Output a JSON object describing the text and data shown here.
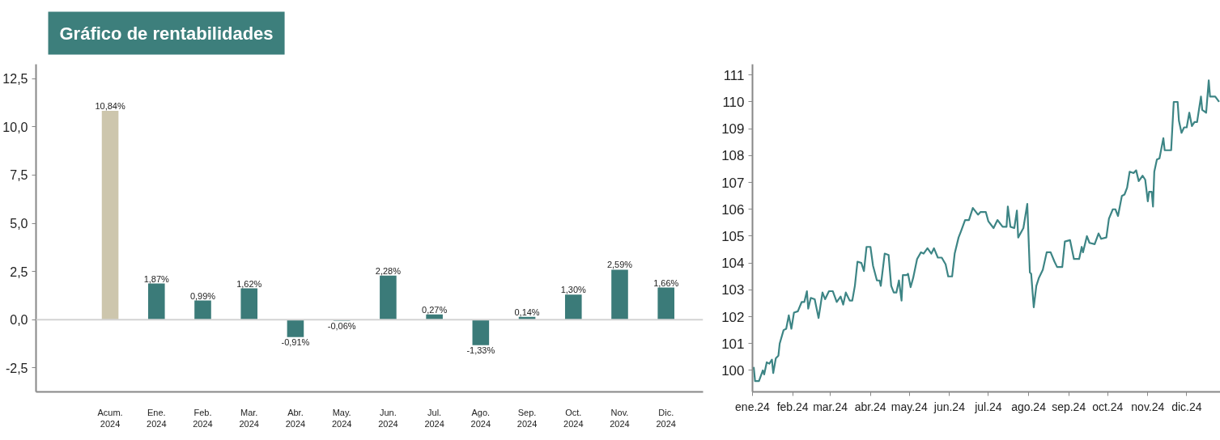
{
  "chart_data": [
    {
      "type": "bar",
      "title": "Gráfico de rentabilidades",
      "categories": [
        "Acum.\n2024",
        "Ene.\n2024",
        "Feb.\n2024",
        "Mar.\n2024",
        "Abr.\n2024",
        "May.\n2024",
        "Jun.\n2024",
        "Jul.\n2024",
        "Ago.\n2024",
        "Sep.\n2024",
        "Oct.\n2024",
        "Nov.\n2024",
        "Dic.\n2024"
      ],
      "values": [
        10.84,
        1.87,
        0.99,
        1.62,
        -0.91,
        -0.06,
        2.28,
        0.27,
        -1.33,
        0.14,
        1.3,
        2.59,
        1.66
      ],
      "colors": [
        "#cdc6ad",
        "#3b7b79",
        "#3b7b79",
        "#3b7b79",
        "#3b7b79",
        "#3b7b79",
        "#3b7b79",
        "#3b7b79",
        "#3b7b79",
        "#3b7b79",
        "#3b7b79",
        "#3b7b79",
        "#3b7b79"
      ],
      "value_labels": [
        "10,84%",
        "1,87%",
        "0,99%",
        "1,62%",
        "-0,91%",
        "-0,06%",
        "2,28%",
        "0,27%",
        "-1,33%",
        "0,14%",
        "1,30%",
        "2,59%",
        "1,66%"
      ],
      "ylim": [
        -3.75,
        13.25
      ],
      "yticks": [
        {
          "value": -2.5,
          "label": "-2,5"
        },
        {
          "value": 0,
          "label": "0,0"
        },
        {
          "value": 2.5,
          "label": "2,5"
        },
        {
          "value": 5,
          "label": "5,0"
        },
        {
          "value": 7.5,
          "label": "7,5"
        },
        {
          "value": 10,
          "label": "10,0"
        },
        {
          "value": 12.5,
          "label": "12,5"
        }
      ],
      "ref_lines": [
        {
          "axis": "y",
          "value": 0,
          "color": "#d3d3d3"
        }
      ]
    },
    {
      "type": "line",
      "color": "#3d8585",
      "x": [
        "2024-01-01",
        "2024-01-02",
        "2024-01-03",
        "2024-01-06",
        "2024-01-09",
        "2024-01-10",
        "2024-01-12",
        "2024-01-14",
        "2024-01-16",
        "2024-01-17",
        "2024-01-19",
        "2024-01-21",
        "2024-01-22",
        "2024-01-25",
        "2024-01-27",
        "2024-01-29",
        "2024-01-31",
        "2024-02-02",
        "2024-02-05",
        "2024-02-08",
        "2024-02-10",
        "2024-02-12",
        "2024-02-13",
        "2024-02-15",
        "2024-02-18",
        "2024-02-21",
        "2024-02-24",
        "2024-02-26",
        "2024-02-29",
        "2024-03-03",
        "2024-03-06",
        "2024-03-09",
        "2024-03-11",
        "2024-03-13",
        "2024-03-16",
        "2024-03-18",
        "2024-03-20",
        "2024-03-22",
        "2024-03-25",
        "2024-03-27",
        "2024-03-29",
        "2024-04-01",
        "2024-04-03",
        "2024-04-06",
        "2024-04-08",
        "2024-04-09",
        "2024-04-12",
        "2024-04-15",
        "2024-04-17",
        "2024-04-19",
        "2024-04-21",
        "2024-04-23",
        "2024-04-25",
        "2024-04-26",
        "2024-04-29",
        "2024-04-30",
        "2024-05-02",
        "2024-05-04",
        "2024-05-07",
        "2024-05-10",
        "2024-05-12",
        "2024-05-15",
        "2024-05-18",
        "2024-05-20",
        "2024-05-23",
        "2024-05-26",
        "2024-05-29",
        "2024-05-31",
        "2024-06-03",
        "2024-06-05",
        "2024-06-08",
        "2024-06-10",
        "2024-06-13",
        "2024-06-16",
        "2024-06-19",
        "2024-06-23",
        "2024-06-25",
        "2024-06-29",
        "2024-07-01",
        "2024-07-05",
        "2024-07-08",
        "2024-07-12",
        "2024-07-15",
        "2024-07-16",
        "2024-07-18",
        "2024-07-21",
        "2024-07-23",
        "2024-07-24",
        "2024-07-28",
        "2024-07-31",
        "2024-08-02",
        "2024-08-03",
        "2024-08-05",
        "2024-08-07",
        "2024-08-09",
        "2024-08-12",
        "2024-08-15",
        "2024-08-18",
        "2024-08-21",
        "2024-08-23",
        "2024-08-27",
        "2024-08-29",
        "2024-09-02",
        "2024-09-05",
        "2024-09-09",
        "2024-09-11",
        "2024-09-12",
        "2024-09-15",
        "2024-09-17",
        "2024-09-21",
        "2024-09-24",
        "2024-09-26",
        "2024-09-30",
        "2024-10-02",
        "2024-10-05",
        "2024-10-07",
        "2024-10-09",
        "2024-10-12",
        "2024-10-14",
        "2024-10-16",
        "2024-10-18",
        "2024-10-21",
        "2024-10-23",
        "2024-10-25",
        "2024-10-28",
        "2024-10-30",
        "2024-11-01",
        "2024-11-02",
        "2024-11-04",
        "2024-11-05",
        "2024-11-06",
        "2024-11-08",
        "2024-11-10",
        "2024-11-11",
        "2024-11-13",
        "2024-11-14",
        "2024-11-19",
        "2024-11-21",
        "2024-11-24",
        "2024-11-25",
        "2024-11-27",
        "2024-11-29",
        "2024-12-01",
        "2024-12-03",
        "2024-12-05",
        "2024-12-07",
        "2024-12-09",
        "2024-12-12",
        "2024-12-13",
        "2024-12-16",
        "2024-12-18",
        "2024-12-19",
        "2024-12-23",
        "2024-12-26"
      ],
      "values": [
        100.05,
        100.1,
        99.6,
        99.6,
        100.0,
        99.85,
        100.3,
        100.25,
        100.4,
        99.9,
        100.45,
        100.55,
        101.0,
        101.5,
        101.55,
        102.05,
        101.55,
        102.15,
        102.2,
        102.55,
        102.55,
        102.95,
        102.3,
        102.7,
        102.65,
        101.95,
        102.9,
        102.65,
        102.95,
        102.95,
        102.55,
        102.75,
        102.45,
        102.9,
        102.6,
        102.6,
        103.15,
        104.05,
        104.0,
        103.7,
        104.6,
        104.6,
        103.9,
        103.35,
        103.35,
        103.15,
        104.35,
        104.3,
        103.15,
        102.9,
        102.9,
        103.35,
        102.6,
        103.55,
        103.55,
        103.6,
        103.1,
        103.45,
        104.15,
        104.4,
        104.35,
        104.55,
        104.35,
        104.55,
        104.2,
        104.2,
        103.95,
        103.5,
        103.5,
        104.35,
        104.95,
        105.2,
        105.6,
        105.6,
        106.05,
        105.8,
        105.9,
        105.9,
        105.55,
        105.3,
        105.6,
        105.35,
        105.35,
        106.1,
        105.35,
        105.3,
        105.95,
        104.95,
        105.3,
        106.2,
        103.65,
        103.6,
        102.35,
        103.15,
        103.45,
        103.75,
        104.4,
        104.4,
        104.05,
        103.85,
        103.85,
        104.8,
        104.85,
        104.15,
        104.15,
        104.6,
        104.4,
        105.0,
        104.75,
        104.7,
        105.1,
        104.9,
        104.95,
        105.65,
        106.0,
        106.0,
        105.75,
        106.5,
        106.55,
        106.8,
        107.4,
        107.35,
        107.45,
        107.05,
        107.25,
        107.1,
        106.3,
        106.65,
        106.65,
        106.1,
        107.4,
        107.85,
        107.9,
        108.15,
        108.65,
        108.2,
        108.2,
        110.0,
        110.0,
        109.3,
        108.85,
        109.05,
        109.05,
        109.6,
        109.1,
        109.25,
        109.25,
        110.2,
        109.7,
        109.6,
        110.8,
        110.2,
        110.2,
        110.0
      ],
      "xlim": [
        "2024-01-01",
        "2024-12-27"
      ],
      "xticks": [
        {
          "value": "2024-01-01",
          "label": "ene.24"
        },
        {
          "value": "2024-02-01",
          "label": "feb.24"
        },
        {
          "value": "2024-03-01",
          "label": "mar.24"
        },
        {
          "value": "2024-04-01",
          "label": "abr.24"
        },
        {
          "value": "2024-05-01",
          "label": "may.24"
        },
        {
          "value": "2024-06-01",
          "label": "jun.24"
        },
        {
          "value": "2024-07-01",
          "label": "jul.24"
        },
        {
          "value": "2024-08-01",
          "label": "ago.24"
        },
        {
          "value": "2024-09-01",
          "label": "sep.24"
        },
        {
          "value": "2024-10-01",
          "label": "oct.24"
        },
        {
          "value": "2024-11-01",
          "label": "nov.24"
        },
        {
          "value": "2024-12-01",
          "label": "dic.24"
        }
      ],
      "ylim": [
        99.2,
        111.4
      ],
      "yticks": [
        100,
        101,
        102,
        103,
        104,
        105,
        106,
        107,
        108,
        109,
        110,
        111
      ]
    }
  ]
}
